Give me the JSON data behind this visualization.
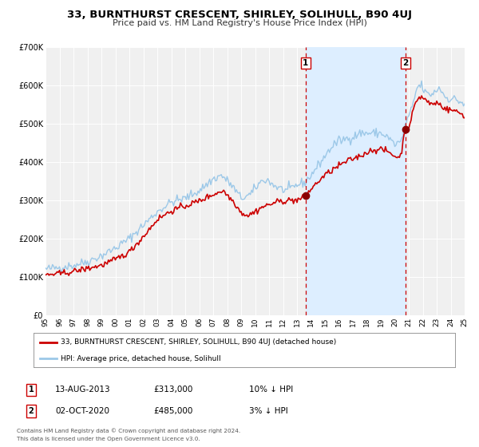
{
  "title": "33, BURNTHURST CRESCENT, SHIRLEY, SOLIHULL, B90 4UJ",
  "subtitle": "Price paid vs. HM Land Registry's House Price Index (HPI)",
  "legend_line1": "33, BURNTHURST CRESCENT, SHIRLEY, SOLIHULL, B90 4UJ (detached house)",
  "legend_line2": "HPI: Average price, detached house, Solihull",
  "annotation1_label": "1",
  "annotation1_date": "13-AUG-2013",
  "annotation1_price": "£313,000",
  "annotation1_hpi": "10% ↓ HPI",
  "annotation2_label": "2",
  "annotation2_date": "02-OCT-2020",
  "annotation2_price": "£485,000",
  "annotation2_hpi": "3% ↓ HPI",
  "footer1": "Contains HM Land Registry data © Crown copyright and database right 2024.",
  "footer2": "This data is licensed under the Open Government Licence v3.0.",
  "sale1_x": 2013.617,
  "sale1_y": 313000,
  "sale2_x": 2020.751,
  "sale2_y": 485000,
  "vline1_x": 2013.617,
  "vline2_x": 2020.751,
  "shade_start": 2013.617,
  "shade_end": 2020.751,
  "hpi_color": "#9cc8e8",
  "price_color": "#cc0000",
  "sale_dot_color": "#8b0000",
  "vline_color": "#cc0000",
  "shade_color": "#ddeeff",
  "background_color": "#ffffff",
  "plot_bg_color": "#f0f0f0",
  "ylim": [
    0,
    700000
  ],
  "xlim_start": 1995,
  "xlim_end": 2025,
  "yticks": [
    0,
    100000,
    200000,
    300000,
    400000,
    500000,
    600000,
    700000
  ],
  "ytick_labels": [
    "£0",
    "£100K",
    "£200K",
    "£300K",
    "£400K",
    "£500K",
    "£600K",
    "£700K"
  ],
  "xticks": [
    1995,
    1996,
    1997,
    1998,
    1999,
    2000,
    2001,
    2002,
    2003,
    2004,
    2005,
    2006,
    2007,
    2008,
    2009,
    2010,
    2011,
    2012,
    2013,
    2014,
    2015,
    2016,
    2017,
    2018,
    2019,
    2020,
    2021,
    2022,
    2023,
    2024,
    2025
  ]
}
